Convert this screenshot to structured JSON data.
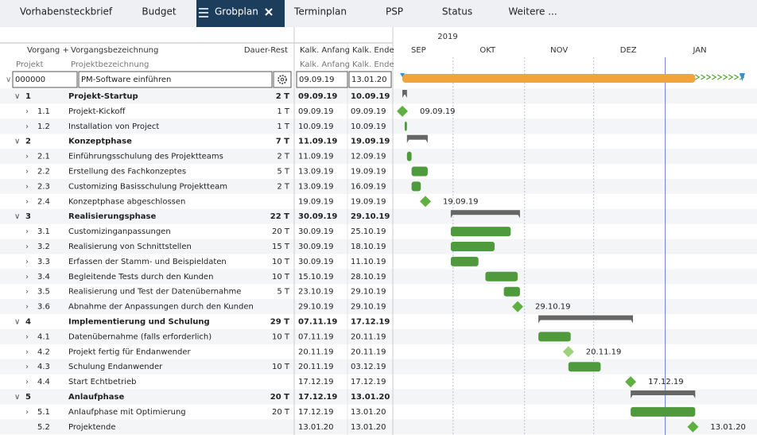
{
  "tabs": [
    "Vorhabensteckbrief",
    "Budget",
    "Grobplan",
    "Terminplan",
    "PSP",
    "Status",
    "Weitere ..."
  ],
  "active_tab": 2,
  "table": {
    "header": {
      "vorgang": "Vorgang +",
      "bezeichnung": "Vorgangsbezeichnung",
      "dauer": "Dauer-Rest",
      "anfang": "Kalk. Anfang",
      "ende": "Kalk. Ende"
    },
    "subheader": {
      "projekt": "Projekt",
      "bezeichnung": "Projektbezeichnung",
      "anfang": "Kalk. Anfang",
      "ende": "Kalk. Ende"
    },
    "project": {
      "id": "000000",
      "name": "PM-Software einführen",
      "start": "09.09.19",
      "end": "13.01.20"
    },
    "rows": [
      {
        "id": "1",
        "name": "Projekt-Startup",
        "duration": "2 T",
        "start": "09.09.19",
        "end": "10.09.19",
        "level": 1,
        "kind": "summary"
      },
      {
        "id": "1.1",
        "name": "Projekt-Kickoff",
        "duration": "1 T",
        "start": "09.09.19",
        "end": "09.09.19",
        "level": 2,
        "kind": "milestone"
      },
      {
        "id": "1.2",
        "name": "Installation von Project",
        "duration": "1 T",
        "start": "10.09.19",
        "end": "10.09.19",
        "level": 2,
        "kind": "task"
      },
      {
        "id": "2",
        "name": "Konzeptphase",
        "duration": "7 T",
        "start": "11.09.19",
        "end": "19.09.19",
        "level": 1,
        "kind": "summary"
      },
      {
        "id": "2.1",
        "name": "Einführungsschulung des Projektteams",
        "duration": "2 T",
        "start": "11.09.19",
        "end": "12.09.19",
        "level": 2,
        "kind": "task"
      },
      {
        "id": "2.2",
        "name": "Erstellung des Fachkonzeptes",
        "duration": "5 T",
        "start": "13.09.19",
        "end": "19.09.19",
        "level": 2,
        "kind": "task"
      },
      {
        "id": "2.3",
        "name": "Customizing Basisschulung Projektteam",
        "duration": "2 T",
        "start": "13.09.19",
        "end": "16.09.19",
        "level": 2,
        "kind": "task"
      },
      {
        "id": "2.4",
        "name": "Konzeptphase abgeschlossen",
        "duration": null,
        "start": "19.09.19",
        "end": "19.09.19",
        "level": 2,
        "kind": "milestone"
      },
      {
        "id": "3",
        "name": "Realisierungsphase",
        "duration": "22 T",
        "start": "30.09.19",
        "end": "29.10.19",
        "level": 1,
        "kind": "summary"
      },
      {
        "id": "3.1",
        "name": "Customizinganpassungen",
        "duration": "20 T",
        "start": "30.09.19",
        "end": "25.10.19",
        "level": 2,
        "kind": "task"
      },
      {
        "id": "3.2",
        "name": "Realisierung von Schnittstellen",
        "duration": "15 T",
        "start": "30.09.19",
        "end": "18.10.19",
        "level": 2,
        "kind": "task"
      },
      {
        "id": "3.3",
        "name": "Erfassen der Stamm- und Beispieldaten",
        "duration": "10 T",
        "start": "30.09.19",
        "end": "11.10.19",
        "level": 2,
        "kind": "task"
      },
      {
        "id": "3.4",
        "name": "Begleitende Tests durch den Kunden",
        "duration": "10 T",
        "start": "15.10.19",
        "end": "28.10.19",
        "level": 2,
        "kind": "task"
      },
      {
        "id": "3.5",
        "name": "Realisierung und Test der Datenübernahme",
        "duration": "5 T",
        "start": "23.10.19",
        "end": "29.10.19",
        "level": 2,
        "kind": "task"
      },
      {
        "id": "3.6",
        "name": "Abnahme der Anpassungen durch den Kunden",
        "duration": null,
        "start": "29.10.19",
        "end": "29.10.19",
        "level": 2,
        "kind": "milestone"
      },
      {
        "id": "4",
        "name": "Implementierung und Schulung",
        "duration": "29 T",
        "start": "07.11.19",
        "end": "17.12.19",
        "level": 1,
        "kind": "summary"
      },
      {
        "id": "4.1",
        "name": "Datenübernahme (falls erforderlich)",
        "duration": "10 T",
        "start": "07.11.19",
        "end": "20.11.19",
        "level": 2,
        "kind": "task"
      },
      {
        "id": "4.2",
        "name": "Projekt fertig für Endanwender",
        "duration": null,
        "start": "20.11.19",
        "end": "20.11.19",
        "level": 2,
        "kind": "milestone"
      },
      {
        "id": "4.3",
        "name": "Schulung Endanwender",
        "duration": "10 T",
        "start": "20.11.19",
        "end": "03.12.19",
        "level": 2,
        "kind": "task"
      },
      {
        "id": "4.4",
        "name": "Start Echtbetrieb",
        "duration": null,
        "start": "17.12.19",
        "end": "17.12.19",
        "level": 2,
        "kind": "milestone"
      },
      {
        "id": "5",
        "name": "Anlaufphase",
        "duration": "20 T",
        "start": "17.12.19",
        "end": "13.01.20",
        "level": 1,
        "kind": "summary"
      },
      {
        "id": "5.1",
        "name": "Anlaufphase mit Optimierung",
        "duration": "20 T",
        "start": "17.12.19",
        "end": "13.01.20",
        "level": 2,
        "kind": "task"
      },
      {
        "id": "5.2",
        "name": "Projektende",
        "duration": null,
        "start": "13.01.20",
        "end": "13.01.20",
        "level": 2,
        "kind": "milestone",
        "expandable": false
      }
    ]
  },
  "gantt": {
    "year": "2019",
    "months": [
      "SEP",
      "OKT",
      "NOV",
      "DEZ",
      "JAN"
    ]
  }
}
